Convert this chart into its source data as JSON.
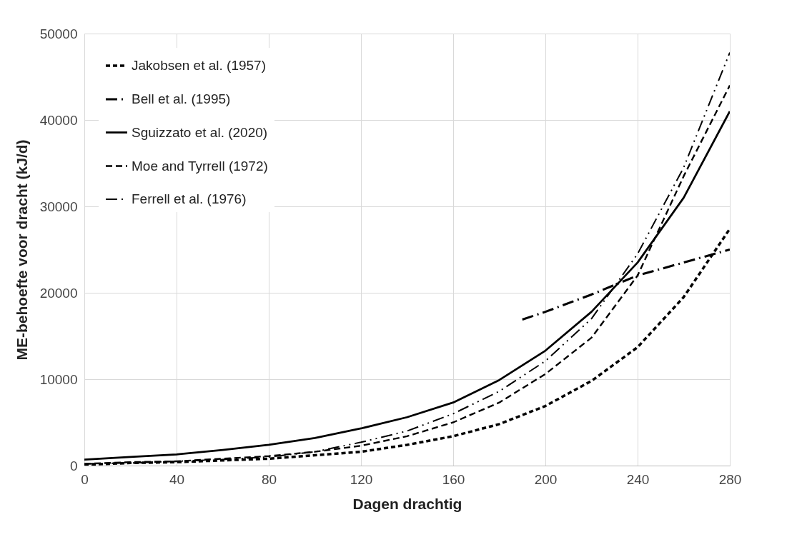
{
  "chart_data": {
    "type": "line",
    "xlabel": "Dagen drachtig",
    "ylabel": "ME-behoefte voor dracht (kJ/d)",
    "x": [
      0,
      20,
      40,
      60,
      80,
      100,
      120,
      140,
      160,
      180,
      200,
      220,
      240,
      260,
      280
    ],
    "series": [
      {
        "name": "Jakobsen et al. (1957)",
        "color": "#000000",
        "line_style": "dotted",
        "values": [
          100,
          300,
          400,
          600,
          800,
          1200,
          1600,
          2400,
          3400,
          4800,
          6900,
          9800,
          13700,
          19500,
          27400
        ]
      },
      {
        "name": "Bell et al. (1995)",
        "color": "#000000",
        "line_style": "dashdot",
        "x": [
          190,
          200,
          220,
          240,
          260,
          280
        ],
        "values": [
          16900,
          17800,
          19800,
          22000,
          23500,
          25000
        ]
      },
      {
        "name": "Sguizzato et al. (2020)",
        "color": "#000000",
        "line_style": "solid",
        "values": [
          700,
          1000,
          1300,
          1800,
          2400,
          3200,
          4300,
          5600,
          7300,
          9900,
          13300,
          17800,
          23500,
          31000,
          41000
        ]
      },
      {
        "name": "Moe and Tyrrell (1972)",
        "color": "#000000",
        "line_style": "dashed",
        "values": [
          200,
          400,
          500,
          800,
          1100,
          1600,
          2300,
          3400,
          5000,
          7300,
          10600,
          14800,
          22000,
          33500,
          44000
        ]
      },
      {
        "name": "Ferrell et al. (1976)",
        "color": "#000000",
        "line_style": "dashdotdot",
        "values": [
          200,
          300,
          500,
          700,
          1000,
          1600,
          2700,
          4000,
          6000,
          8600,
          12100,
          17000,
          24500,
          34500,
          47800
        ]
      }
    ],
    "xlim": [
      0,
      280
    ],
    "xticks": [
      0,
      40,
      80,
      120,
      160,
      200,
      240,
      280
    ],
    "ylim": [
      0,
      50000
    ],
    "yticks": [
      0,
      10000,
      20000,
      30000,
      40000,
      50000
    ],
    "grid": true,
    "legend": "top left",
    "marker": "none"
  }
}
